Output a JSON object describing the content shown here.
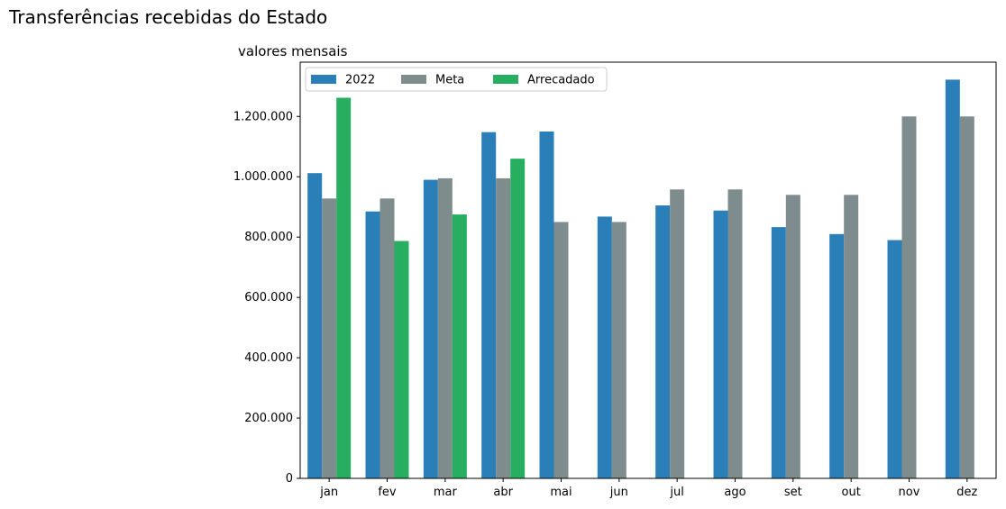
{
  "figure_title": "Transferências recebidas do Estado",
  "chart_data": {
    "type": "bar",
    "title": "valores mensais",
    "xlabel": "",
    "ylabel": "",
    "categories": [
      "jan",
      "fev",
      "mar",
      "abr",
      "mai",
      "jun",
      "jul",
      "ago",
      "set",
      "out",
      "nov",
      "dez"
    ],
    "series": [
      {
        "name": "2022",
        "color": "#2b7fb8",
        "values": [
          1012000,
          885000,
          990000,
          1148000,
          1150000,
          868000,
          905000,
          888000,
          833000,
          810000,
          790000,
          1322000
        ]
      },
      {
        "name": "Meta",
        "color": "#7f8c8d",
        "values": [
          928000,
          928000,
          995000,
          995000,
          850000,
          850000,
          958000,
          958000,
          940000,
          940000,
          1200000,
          1200000
        ]
      },
      {
        "name": "Arrecadado",
        "color": "#27ae60",
        "values": [
          1262000,
          787000,
          875000,
          1060000,
          null,
          null,
          null,
          null,
          null,
          null,
          null,
          null
        ]
      }
    ],
    "ylim": [
      0,
      1380000
    ],
    "yticks": [
      0,
      200000,
      400000,
      600000,
      800000,
      1000000,
      1200000
    ],
    "ytick_labels": [
      "0",
      "200.000",
      "400.000",
      "600.000",
      "800.000",
      "1.000.000",
      "1.200.000"
    ],
    "legend_position": "top-left",
    "grid": false
  }
}
